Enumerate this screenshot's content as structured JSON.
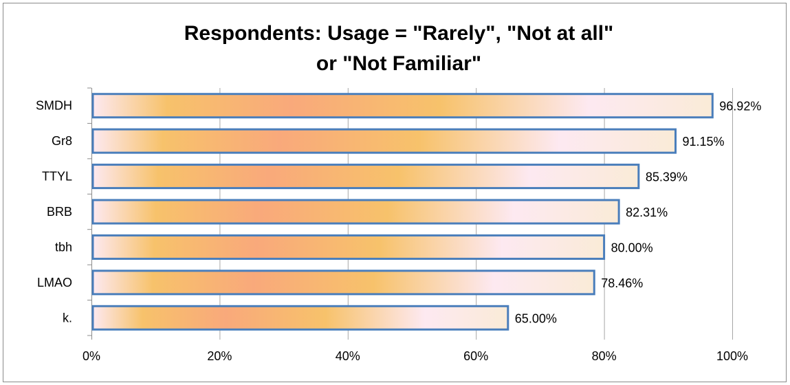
{
  "chart_data": {
    "type": "bar",
    "orientation": "horizontal",
    "title_lines": [
      "Respondents: Usage = \"Rarely\", \"Not at all\"",
      "or \"Not Familiar\""
    ],
    "categories": [
      "SMDH",
      "Gr8",
      "TTYL",
      "BRB",
      "tbh",
      "LMAO",
      "k."
    ],
    "values": [
      96.92,
      91.15,
      85.39,
      82.31,
      80.0,
      78.46,
      65.0
    ],
    "data_labels": [
      "96.92%",
      "91.15%",
      "85.39%",
      "82.31%",
      "80.00%",
      "78.46%",
      "65.00%"
    ],
    "xlim": [
      0,
      100
    ],
    "x_ticks": [
      0,
      20,
      40,
      60,
      80,
      100
    ],
    "x_tick_labels": [
      "0%",
      "20%",
      "40%",
      "60%",
      "80%",
      "100%"
    ],
    "xlabel": "",
    "ylabel": "",
    "grid": "vertical",
    "legend": "none",
    "colors": {
      "bar_border": "#4a7ebb",
      "gradient_stops": [
        "#fde9f1",
        "#f7c26b",
        "#f9a97b",
        "#f7c26b",
        "#fde9f1",
        "#faebd7"
      ],
      "gridline": "#a6a6a6",
      "frame": "#8a8a8a"
    }
  }
}
